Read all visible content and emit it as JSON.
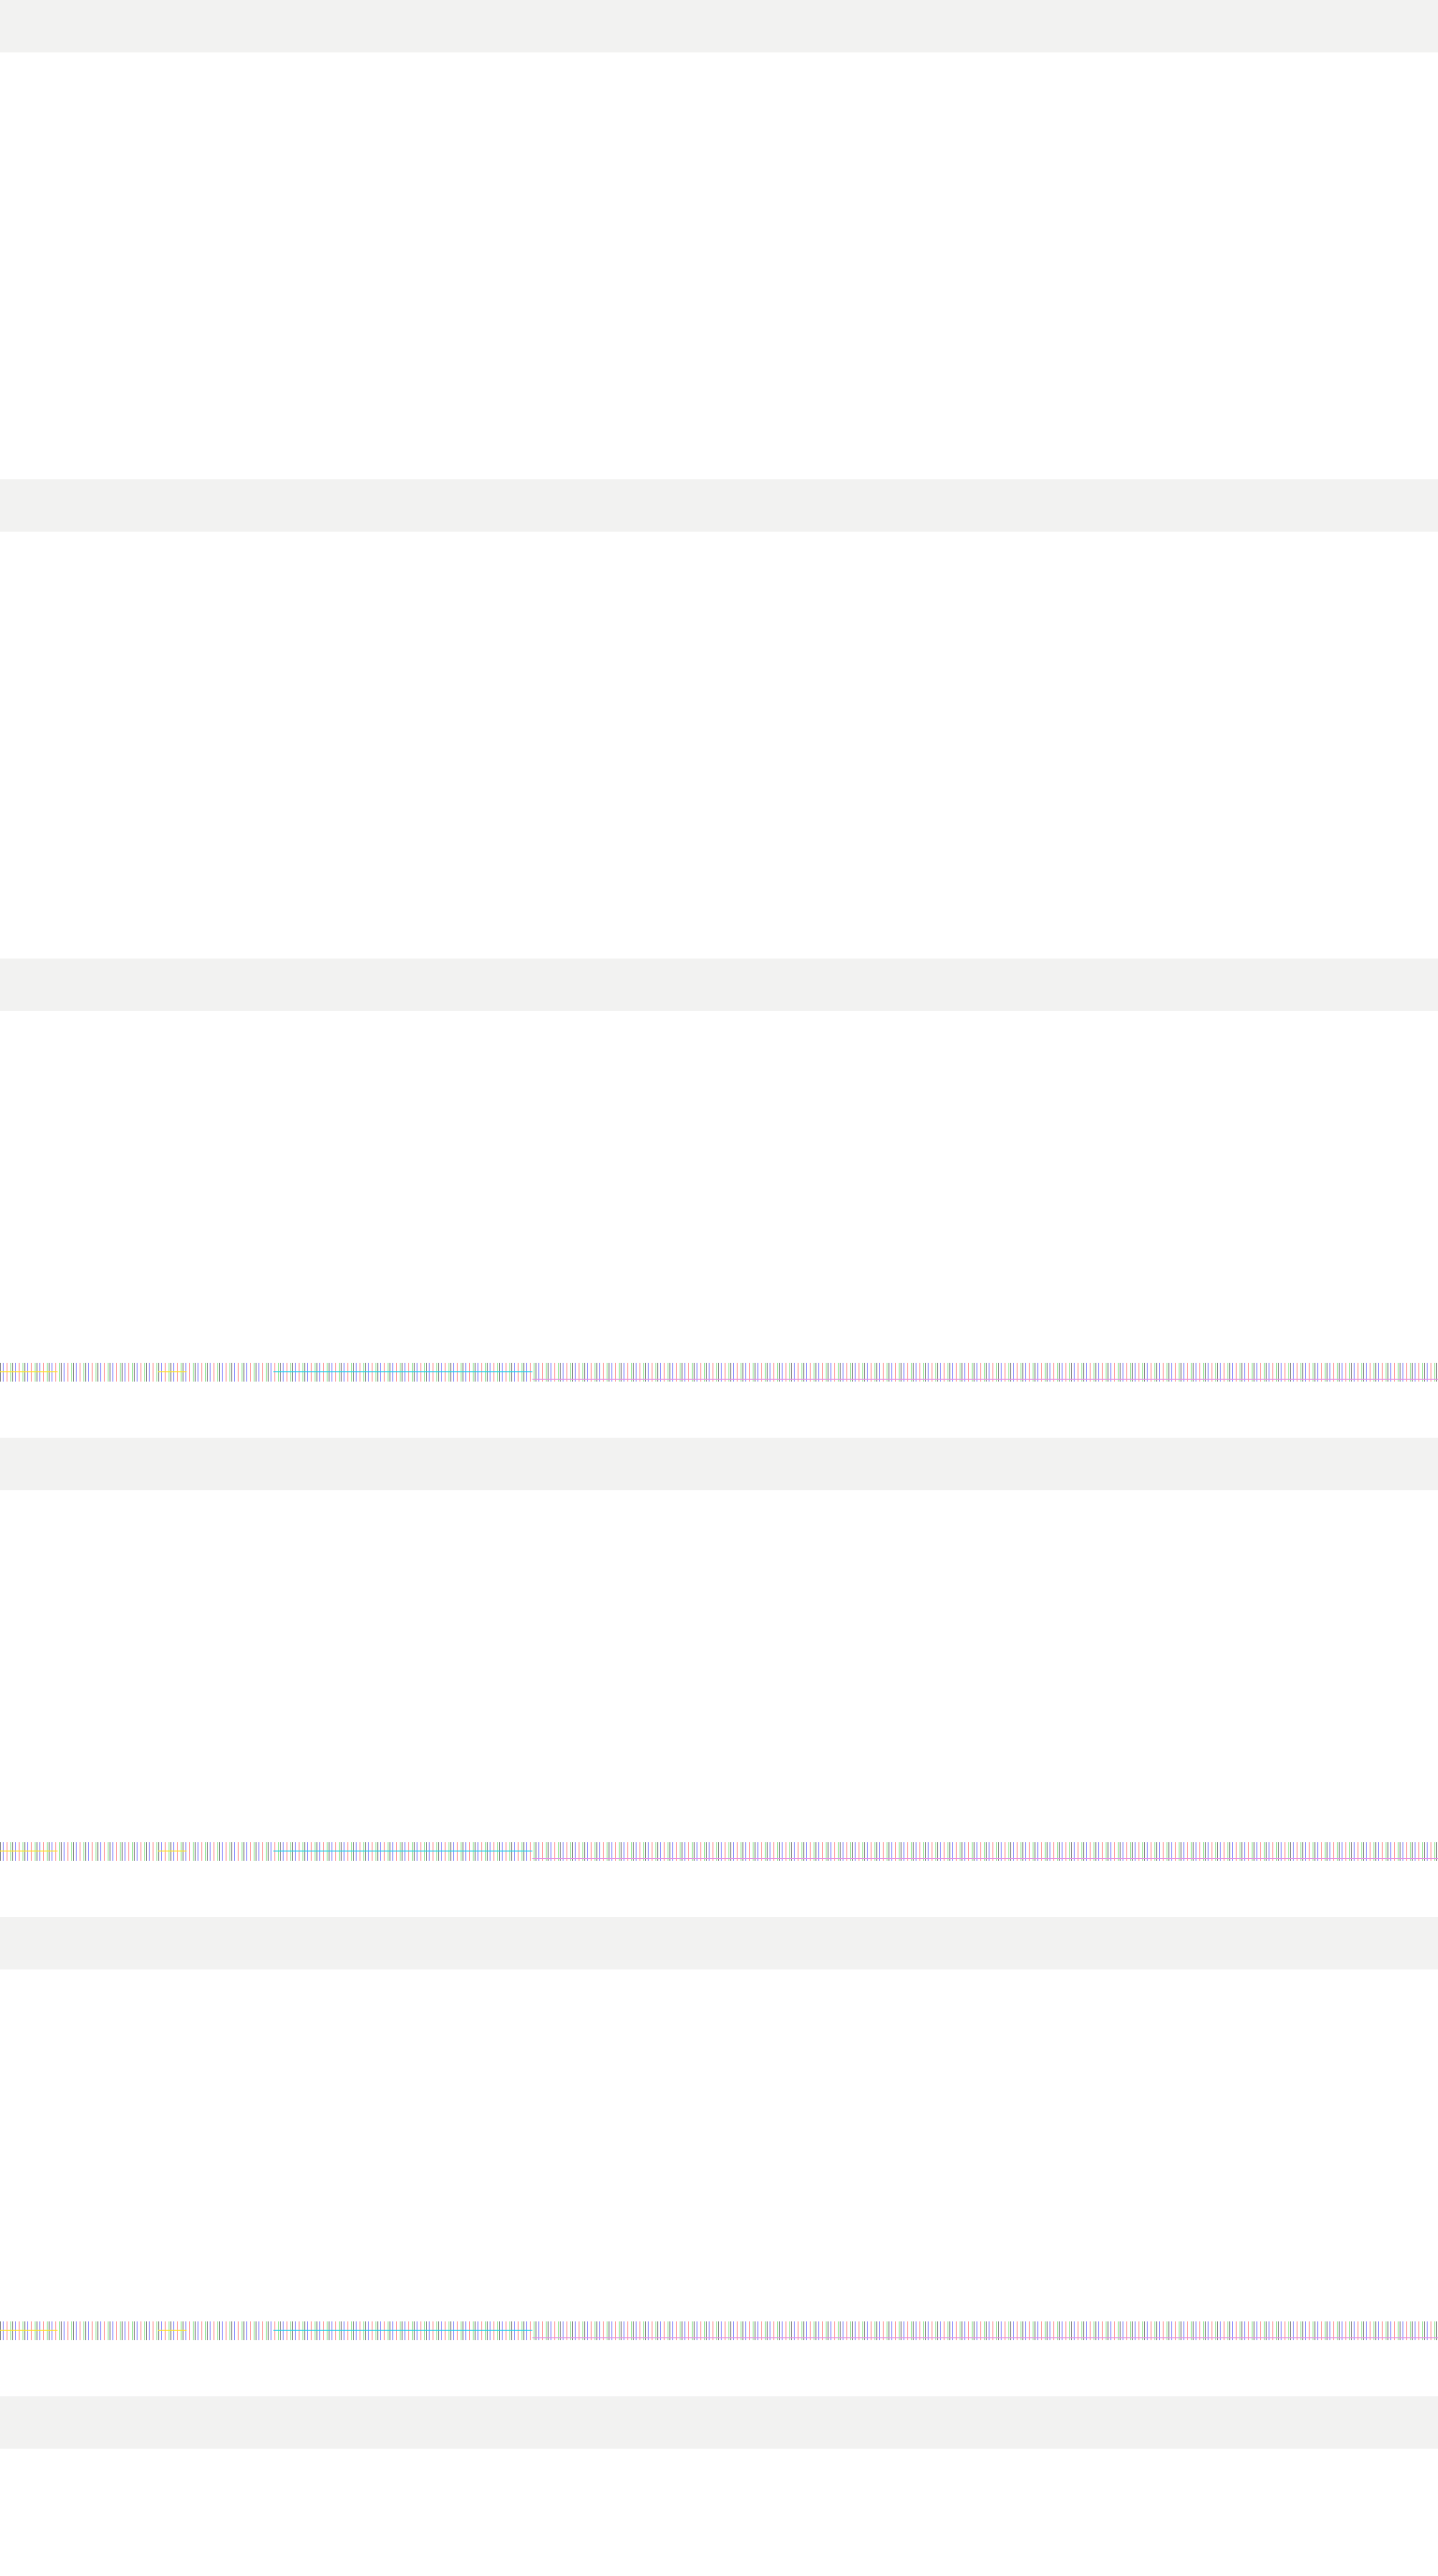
{
  "page": {
    "background_color": "#ffffff",
    "band_color": "#f2f2f1",
    "band_count": 6,
    "noise_strip_count": 3
  }
}
